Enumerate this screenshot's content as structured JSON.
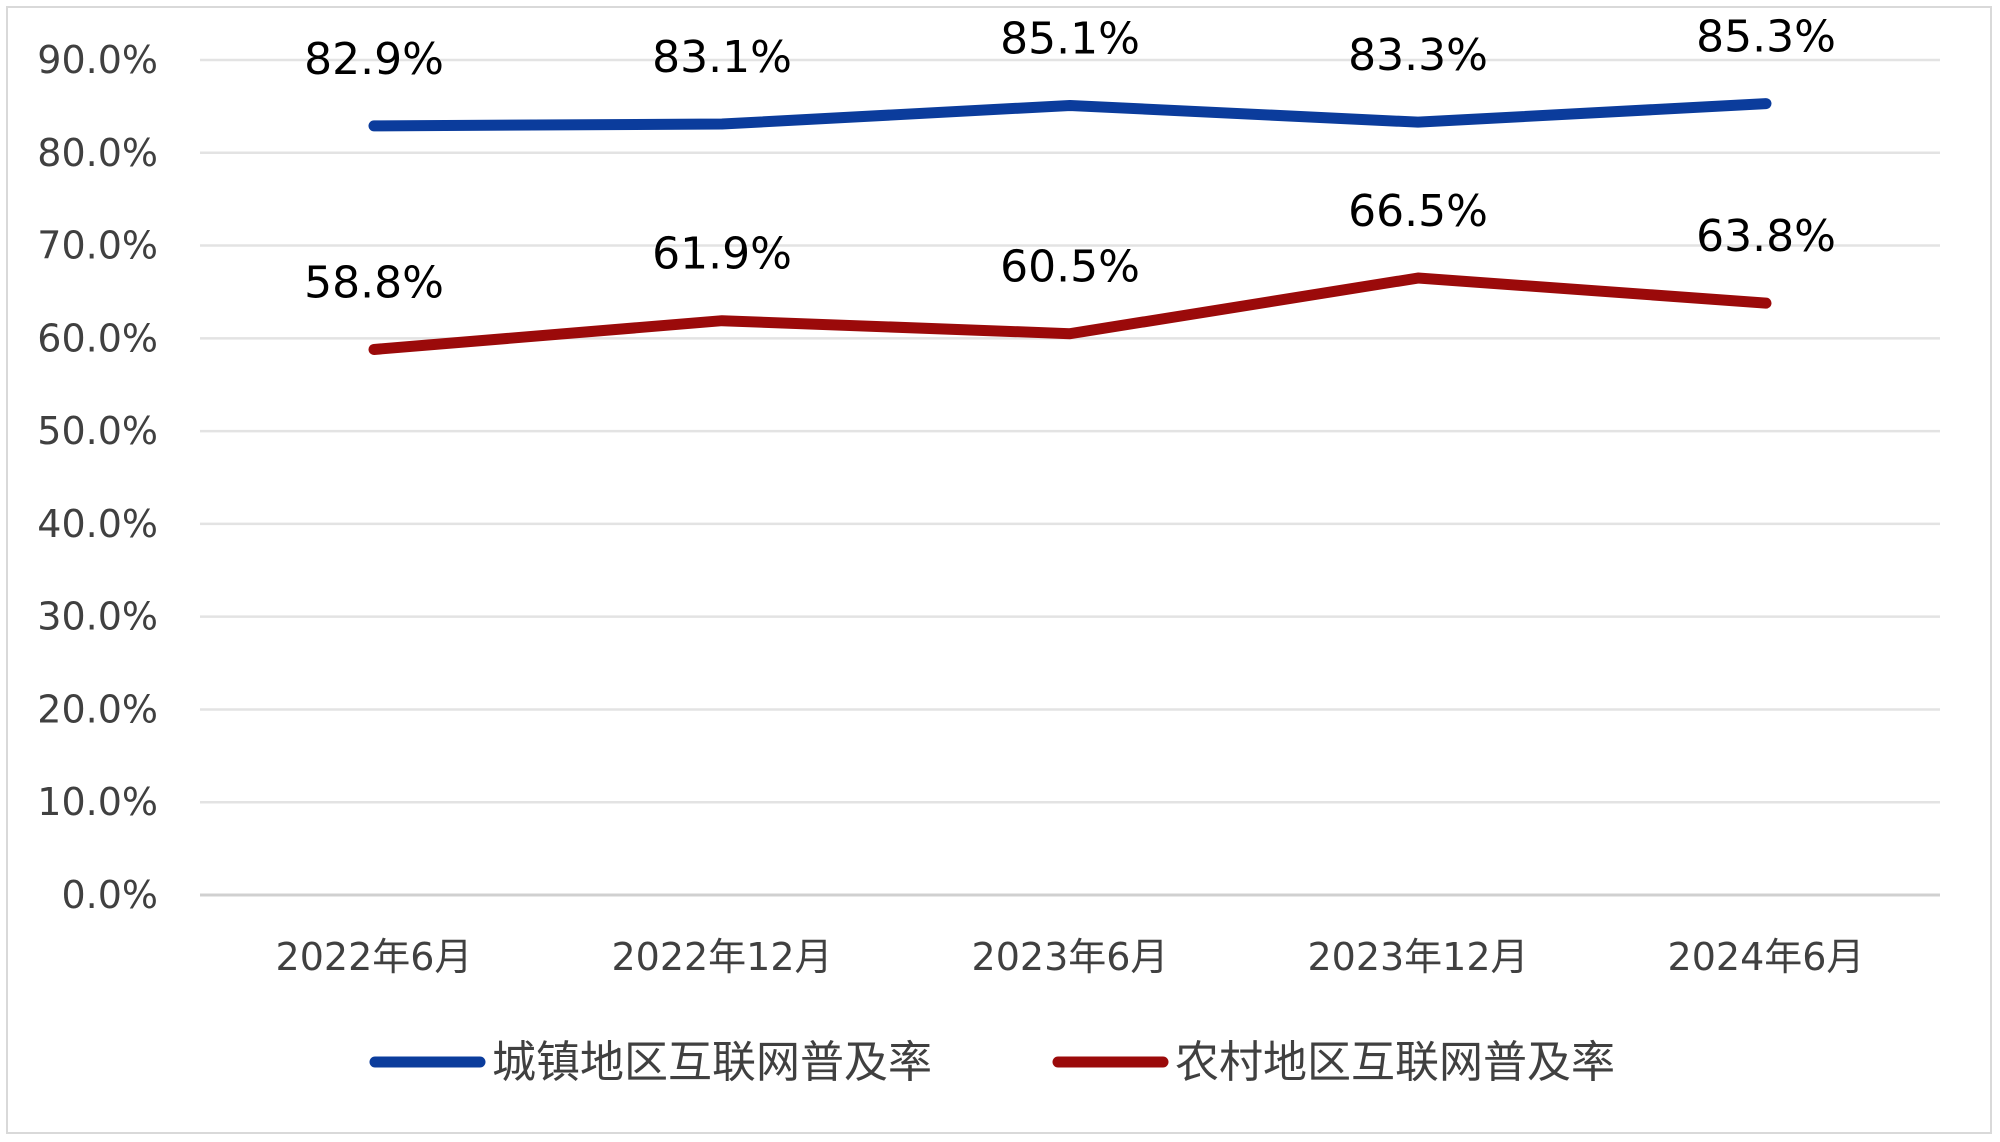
{
  "chart_data": {
    "type": "line",
    "title": "",
    "xlabel": "",
    "ylabel": "",
    "categories": [
      "2022年6月",
      "2022年12月",
      "2023年6月",
      "2023年12月",
      "2024年6月"
    ],
    "ylim": [
      0,
      90
    ],
    "yticks": [
      "0.0%",
      "10.0%",
      "20.0%",
      "30.0%",
      "40.0%",
      "50.0%",
      "60.0%",
      "70.0%",
      "80.0%",
      "90.0%"
    ],
    "grid": true,
    "legend_position": "bottom",
    "series": [
      {
        "name": "城镇地区互联网普及率",
        "color": "#0b3c9c",
        "values": [
          82.9,
          83.1,
          85.1,
          83.3,
          85.3
        ],
        "labels": [
          "82.9%",
          "83.1%",
          "85.1%",
          "83.3%",
          "85.3%"
        ]
      },
      {
        "name": "农村地区互联网普及率",
        "color": "#9b0a0a",
        "values": [
          58.8,
          61.9,
          60.5,
          66.5,
          63.8
        ],
        "labels": [
          "58.8%",
          "61.9%",
          "60.5%",
          "66.5%",
          "63.8%"
        ]
      }
    ]
  }
}
